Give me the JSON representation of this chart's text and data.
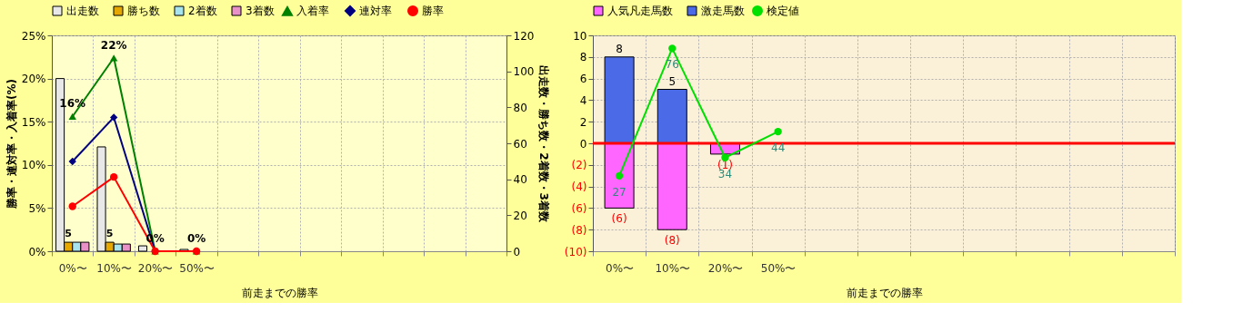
{
  "chart_data": [
    {
      "type": "bar",
      "xlabel": "前走までの勝率",
      "ylabel": "勝率・連対率・入着率(%)",
      "y2label": "出走数・勝ち数・2着数・3着数",
      "categories": [
        "0%〜",
        "10%〜",
        "20%〜",
        "50%〜",
        null,
        null,
        null,
        null,
        null,
        null,
        null
      ],
      "ylim": [
        0,
        25
      ],
      "yticks": [
        {
          "value": 0,
          "label": "0%"
        },
        {
          "value": 5,
          "label": "5%"
        },
        {
          "value": 10,
          "label": "10%"
        },
        {
          "value": 15,
          "label": "15%"
        },
        {
          "value": 20,
          "label": "20%"
        },
        {
          "value": 25,
          "label": "25%"
        }
      ],
      "y2lim": [
        0,
        120
      ],
      "y2ticks": [
        0,
        20,
        40,
        60,
        80,
        100,
        120
      ],
      "grid": true,
      "legend": "top",
      "series": [
        {
          "name": "出走数",
          "axis": "y2",
          "color": "#e8e8e8",
          "values": [
            96,
            58,
            3,
            1,
            null,
            null,
            null,
            null,
            null,
            null,
            null
          ]
        },
        {
          "name": "勝ち数",
          "axis": "y2",
          "color": "#e6a800",
          "values": [
            5,
            5,
            null,
            null,
            null,
            null,
            null,
            null,
            null,
            null,
            null
          ],
          "value_labels": [
            "5",
            "5",
            null,
            null,
            null,
            null,
            null,
            null,
            null,
            null,
            null
          ]
        },
        {
          "name": "2着数",
          "axis": "y2",
          "color": "#a8e4ee",
          "values": [
            5,
            4,
            null,
            null,
            null,
            null,
            null,
            null,
            null,
            null,
            null
          ]
        },
        {
          "name": "3着数",
          "axis": "y2",
          "color": "#e890c8",
          "values": [
            5,
            4,
            null,
            null,
            null,
            null,
            null,
            null,
            null,
            null,
            null
          ]
        },
        {
          "name": "入着率",
          "type": "line",
          "marker": "triangle",
          "color": "#008000",
          "values": [
            15.6,
            22.4,
            0,
            0,
            null,
            null,
            null,
            null,
            null,
            null,
            null
          ],
          "value_labels": [
            "16%",
            "22%",
            "0%",
            "0%",
            null,
            null,
            null,
            null,
            null,
            null,
            null
          ]
        },
        {
          "name": "連対率",
          "type": "line",
          "marker": "diamond",
          "color": "#000080",
          "values": [
            10.4,
            15.5,
            0,
            0,
            null,
            null,
            null,
            null,
            null,
            null,
            null
          ]
        },
        {
          "name": "勝率",
          "type": "line",
          "marker": "circle",
          "color": "#ff0000",
          "values": [
            5.2,
            8.6,
            0,
            0,
            null,
            null,
            null,
            null,
            null,
            null,
            null
          ]
        }
      ]
    },
    {
      "type": "bar",
      "xlabel": "前走までの勝率",
      "stacked": true,
      "categories": [
        "0%〜",
        "10%〜",
        "20%〜",
        "50%〜",
        null,
        null,
        null,
        null,
        null,
        null,
        null
      ],
      "ylim": [
        -10,
        10
      ],
      "yticks": [
        {
          "value": -10,
          "label": "(10)"
        },
        {
          "value": -8,
          "label": "(8)"
        },
        {
          "value": -6,
          "label": "(6)"
        },
        {
          "value": -4,
          "label": "(4)"
        },
        {
          "value": -2,
          "label": "(2)"
        },
        0,
        2,
        4,
        6,
        8,
        10
      ],
      "y2lim": [
        -2,
        81
      ],
      "grid": true,
      "legend": "top",
      "ref_lines": [
        {
          "axis": "y",
          "value": 0,
          "color": "#ff0000"
        }
      ],
      "series": [
        {
          "name": "人気凡走馬数",
          "color": "#ff66ff",
          "values": [
            -6,
            -8,
            -1,
            null,
            null,
            null,
            null,
            null,
            null,
            null,
            null
          ],
          "value_labels": [
            "(6)",
            "(8)",
            "(1)",
            null,
            null,
            null,
            null,
            null,
            null,
            null,
            null
          ]
        },
        {
          "name": "激走馬数",
          "color": "#4a6ae8",
          "values": [
            8,
            5,
            null,
            null,
            null,
            null,
            null,
            null,
            null,
            null,
            null
          ],
          "value_labels": [
            "8",
            "5",
            null,
            null,
            null,
            null,
            null,
            null,
            null,
            null,
            null
          ]
        },
        {
          "name": "検定値",
          "type": "line",
          "axis": "y2",
          "marker": "circle",
          "color": "#00e000",
          "values": [
            27,
            76,
            34,
            44,
            null,
            null,
            null,
            null,
            null,
            null,
            null
          ],
          "value_labels": [
            "27",
            "76",
            "34",
            "44",
            null,
            null,
            null,
            null,
            null,
            null,
            null
          ]
        }
      ]
    }
  ]
}
